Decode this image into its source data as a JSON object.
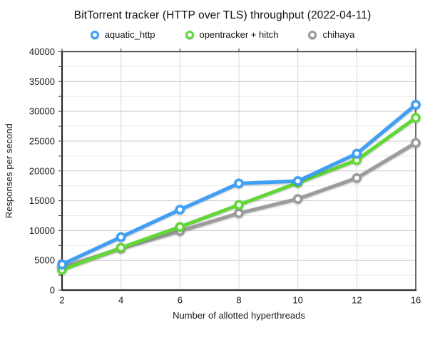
{
  "chart_data": {
    "type": "line",
    "title": "BitTorrent tracker (HTTP over TLS) throughput (2022-04-11)",
    "categories": [
      "2",
      "4",
      "6",
      "8",
      "10",
      "12",
      "16"
    ],
    "series": [
      {
        "name": "aquatic_http",
        "color": "#3E9FF6",
        "values": [
          4300,
          8900,
          13500,
          17900,
          18300,
          22900,
          31100
        ]
      },
      {
        "name": "opentracker + hitch",
        "color": "#61D836",
        "values": [
          3400,
          7100,
          10600,
          14300,
          18000,
          21800,
          28900
        ]
      },
      {
        "name": "chihaya",
        "color": "#9C9C9C",
        "values": [
          3800,
          7000,
          9900,
          12900,
          15300,
          18800,
          24700
        ]
      }
    ],
    "xlabel": "Number of allotted hyperthreads",
    "ylabel": "Responses per second",
    "ylim": [
      0,
      40000
    ],
    "ytick_step": 5000,
    "yminor_step": 2500,
    "grid": true,
    "legend_position": "top",
    "marker": "ring",
    "axis_color": "#3a3a3a",
    "major_grid_color": "#cfcfcf",
    "minor_grid_color": "#ebebeb",
    "vertical_grid_color": "#d8d8d8",
    "text_color": "#1a1a1a"
  }
}
